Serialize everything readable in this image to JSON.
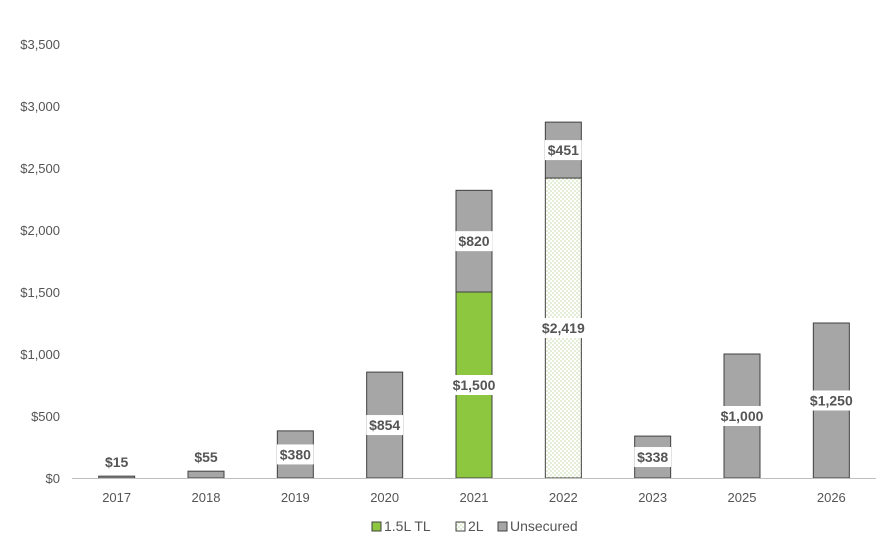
{
  "chart_data": {
    "type": "bar",
    "stacked": true,
    "categories": [
      "2017",
      "2018",
      "2019",
      "2020",
      "2021",
      "2022",
      "2023",
      "2025",
      "2026"
    ],
    "series": [
      {
        "name": "1.5L TL",
        "color": "#8dc63f",
        "pattern": "solid",
        "values": [
          0,
          0,
          0,
          0,
          1500,
          0,
          0,
          0,
          0
        ]
      },
      {
        "name": "2L",
        "color": "#ffffff",
        "pattern": "dotted",
        "values": [
          0,
          0,
          0,
          0,
          0,
          2419,
          0,
          0,
          0
        ]
      },
      {
        "name": "Unsecured",
        "color": "#a6a6a6",
        "pattern": "solid",
        "values": [
          15,
          55,
          380,
          854,
          820,
          451,
          338,
          1000,
          1250
        ]
      }
    ],
    "labels": {
      "1.5L TL": [
        "",
        "",
        "",
        "",
        "$1,500",
        "",
        "",
        "",
        ""
      ],
      "2L": [
        "",
        "",
        "",
        "",
        "",
        "$2,419",
        "",
        "",
        ""
      ],
      "Unsecured": [
        "$15",
        "$55",
        "$380",
        "$854",
        "$820",
        "$451",
        "$338",
        "$1,000",
        "$1,250"
      ]
    },
    "yticks": [
      "$0",
      "$500",
      "$1,000",
      "$1,500",
      "$2,000",
      "$2,500",
      "$3,000",
      "$3,500"
    ],
    "ylim": [
      0,
      3500
    ],
    "grid": false,
    "legend_position": "bottom-center"
  }
}
